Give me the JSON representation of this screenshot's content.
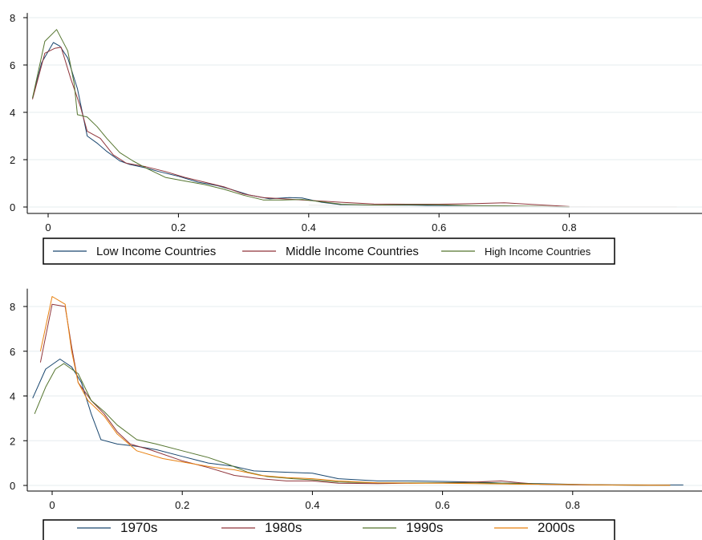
{
  "chart_data": [
    {
      "type": "line",
      "title": "",
      "xlabel": "",
      "ylabel": "",
      "xlim": [
        -0.03,
        0.97
      ],
      "ylim": [
        -0.2,
        8.2
      ],
      "xticks": [
        0,
        0.2,
        0.4,
        0.6,
        0.8
      ],
      "xtick_labels": [
        "0",
        "0.2",
        "0.4",
        "0.6",
        "0.8"
      ],
      "yticks": [
        0,
        2,
        4,
        6,
        8
      ],
      "ytick_labels": [
        "0",
        "2",
        "4",
        "6",
        "8"
      ],
      "grid": true,
      "legend": "bottom-boxed",
      "series": [
        {
          "name": "Low Income Countries",
          "color": "#1a476f",
          "x": [
            -0.024,
            -0.01,
            0.008,
            0.018,
            0.03,
            0.045,
            0.06,
            0.075,
            0.09,
            0.11,
            0.125,
            0.15,
            0.17,
            0.2,
            0.23,
            0.26,
            0.28,
            0.31,
            0.34,
            0.37,
            0.39,
            0.42,
            0.45,
            0.5,
            0.55,
            0.6,
            0.65,
            0.7,
            0.75,
            0.8
          ],
          "y": [
            4.6,
            6.1,
            6.95,
            6.8,
            6.3,
            5.0,
            3.0,
            2.7,
            2.35,
            1.95,
            1.8,
            1.65,
            1.5,
            1.3,
            1.05,
            0.9,
            0.75,
            0.5,
            0.35,
            0.4,
            0.38,
            0.2,
            0.1,
            0.08,
            0.08,
            0.06,
            0.05,
            0.04,
            0.02,
            0.01
          ]
        },
        {
          "name": "Middle Income Countries",
          "color": "#90353b",
          "x": [
            -0.024,
            -0.005,
            0.01,
            0.02,
            0.035,
            0.05,
            0.06,
            0.08,
            0.1,
            0.12,
            0.15,
            0.18,
            0.21,
            0.24,
            0.27,
            0.3,
            0.33,
            0.36,
            0.39,
            0.42,
            0.45,
            0.5,
            0.55,
            0.6,
            0.65,
            0.7,
            0.75,
            0.8
          ],
          "y": [
            4.55,
            6.5,
            6.7,
            6.75,
            5.4,
            4.2,
            3.2,
            2.9,
            2.2,
            1.85,
            1.7,
            1.5,
            1.25,
            1.05,
            0.85,
            0.55,
            0.4,
            0.35,
            0.3,
            0.25,
            0.2,
            0.13,
            0.12,
            0.12,
            0.14,
            0.18,
            0.1,
            0.02
          ]
        },
        {
          "name": "High Income Countries",
          "color": "#55752f",
          "x": [
            -0.024,
            -0.005,
            0.013,
            0.03,
            0.04,
            0.045,
            0.06,
            0.075,
            0.09,
            0.11,
            0.13,
            0.15,
            0.18,
            0.21,
            0.24,
            0.27,
            0.3,
            0.33,
            0.36,
            0.39,
            0.42,
            0.45,
            0.5,
            0.55,
            0.6,
            0.65,
            0.7,
            0.75,
            0.8
          ],
          "y": [
            4.6,
            7.0,
            7.5,
            6.6,
            5.2,
            3.9,
            3.8,
            3.4,
            2.9,
            2.3,
            1.95,
            1.65,
            1.25,
            1.1,
            0.95,
            0.75,
            0.5,
            0.3,
            0.3,
            0.32,
            0.22,
            0.12,
            0.08,
            0.1,
            0.09,
            0.06,
            0.05,
            0.03,
            0.01
          ]
        },
        {
          "name": "",
          "color": "#e8e8e8",
          "x": [
            0.4,
            0.5,
            0.6,
            0.7,
            0.8,
            0.9,
            0.965
          ],
          "y": [
            0.08,
            0.05,
            0.03,
            0.02,
            0.01,
            0.005,
            0.005
          ]
        }
      ]
    },
    {
      "type": "line",
      "title": "",
      "xlabel": "",
      "ylabel": "",
      "xlim": [
        -0.03,
        0.98
      ],
      "ylim": [
        -0.2,
        8.8
      ],
      "xticks": [
        0,
        0.2,
        0.4,
        0.6,
        0.8
      ],
      "xtick_labels": [
        "0",
        "0.2",
        "0.4",
        "0.6",
        "0.8"
      ],
      "yticks": [
        0,
        2,
        4,
        6,
        8
      ],
      "ytick_labels": [
        "0",
        "2",
        "4",
        "6",
        "8"
      ],
      "grid": true,
      "legend": "bottom-boxed",
      "series": [
        {
          "name": "1970s",
          "color": "#1a476f",
          "x": [
            -0.03,
            -0.01,
            0.012,
            0.03,
            0.045,
            0.06,
            0.075,
            0.1,
            0.13,
            0.16,
            0.2,
            0.24,
            0.28,
            0.31,
            0.35,
            0.4,
            0.44,
            0.5,
            0.55,
            0.6,
            0.65,
            0.7,
            0.75,
            0.8,
            0.85,
            0.9,
            0.97
          ],
          "y": [
            3.9,
            5.2,
            5.65,
            5.3,
            4.6,
            3.2,
            2.05,
            1.85,
            1.75,
            1.6,
            1.3,
            1.0,
            0.85,
            0.65,
            0.6,
            0.55,
            0.3,
            0.2,
            0.2,
            0.18,
            0.15,
            0.1,
            0.08,
            0.05,
            0.03,
            0.02,
            0.02
          ]
        },
        {
          "name": "1980s",
          "color": "#90353b",
          "x": [
            -0.018,
            0.0,
            0.02,
            0.03,
            0.04,
            0.06,
            0.08,
            0.1,
            0.12,
            0.15,
            0.2,
            0.24,
            0.28,
            0.32,
            0.36,
            0.4,
            0.44,
            0.5,
            0.55,
            0.6,
            0.65,
            0.69,
            0.72,
            0.75,
            0.8,
            0.85,
            0.9,
            0.95
          ],
          "y": [
            5.5,
            8.1,
            8.0,
            6.2,
            4.6,
            3.8,
            3.2,
            2.4,
            1.85,
            1.6,
            1.1,
            0.8,
            0.45,
            0.3,
            0.2,
            0.2,
            0.1,
            0.08,
            0.1,
            0.12,
            0.15,
            0.2,
            0.12,
            0.05,
            0.03,
            0.02,
            0.01,
            0.01
          ]
        },
        {
          "name": "1990s",
          "color": "#55752f",
          "x": [
            -0.027,
            -0.01,
            0.005,
            0.018,
            0.03,
            0.04,
            0.06,
            0.08,
            0.1,
            0.13,
            0.16,
            0.2,
            0.24,
            0.27,
            0.3,
            0.33,
            0.37,
            0.4,
            0.44,
            0.5,
            0.55,
            0.6,
            0.65,
            0.7,
            0.75,
            0.8,
            0.85,
            0.9,
            0.95
          ],
          "y": [
            3.2,
            4.4,
            5.2,
            5.45,
            5.2,
            5.0,
            3.8,
            3.3,
            2.7,
            2.05,
            1.85,
            1.55,
            1.25,
            0.95,
            0.6,
            0.4,
            0.3,
            0.25,
            0.15,
            0.12,
            0.12,
            0.12,
            0.12,
            0.1,
            0.06,
            0.04,
            0.02,
            0.01,
            0.01
          ]
        },
        {
          "name": "2000s",
          "color": "#e8810f",
          "x": [
            -0.018,
            0.0,
            0.02,
            0.03,
            0.04,
            0.055,
            0.08,
            0.1,
            0.13,
            0.17,
            0.21,
            0.25,
            0.28,
            0.32,
            0.36,
            0.4,
            0.44,
            0.5,
            0.55,
            0.6,
            0.65,
            0.7,
            0.75,
            0.8,
            0.85,
            0.9,
            0.95
          ],
          "y": [
            6.0,
            8.45,
            8.1,
            6.0,
            4.6,
            3.8,
            3.1,
            2.3,
            1.55,
            1.2,
            1.0,
            0.8,
            0.7,
            0.45,
            0.35,
            0.3,
            0.2,
            0.12,
            0.1,
            0.1,
            0.08,
            0.06,
            0.05,
            0.04,
            0.02,
            0.02,
            0.01
          ]
        }
      ]
    }
  ]
}
